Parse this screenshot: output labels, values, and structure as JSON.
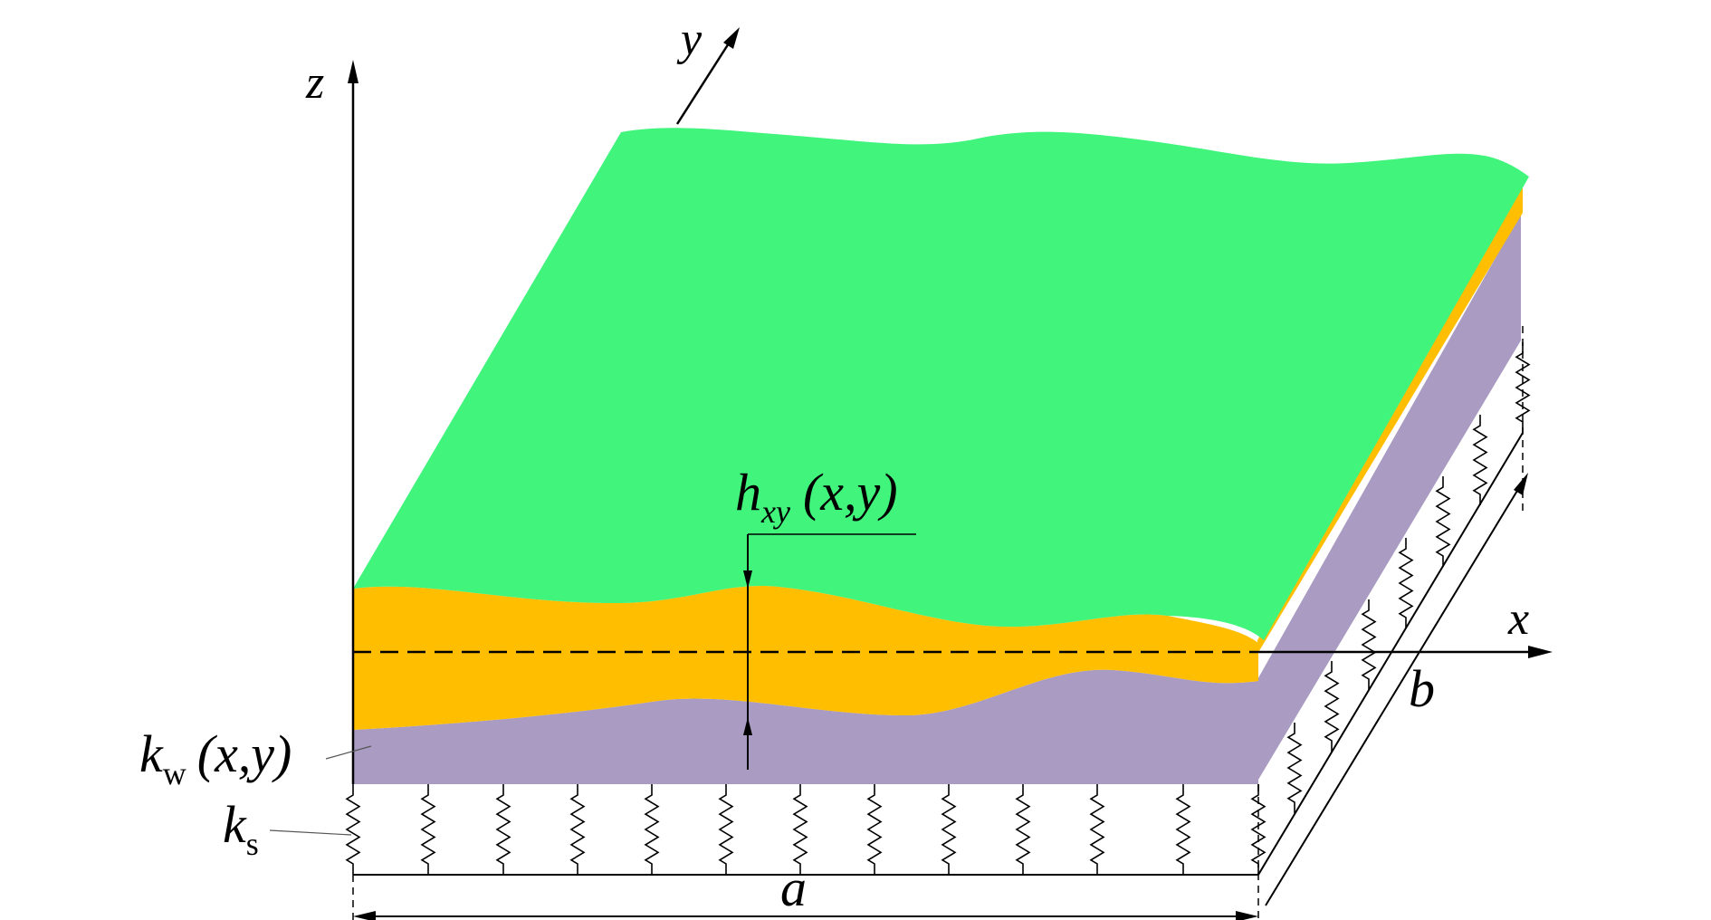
{
  "labels": {
    "z_axis": "z",
    "y_axis": "y",
    "x_axis": "x",
    "thickness_main": "h",
    "thickness_sub": "xy",
    "thickness_args": "(x,y)",
    "winkler_main": "k",
    "winkler_sub": "w",
    "winkler_args": "(x,y)",
    "shear_main": "k",
    "shear_sub": "s",
    "width_a": "a",
    "length_b": "b"
  },
  "colors": {
    "top_layer": "#40F47C",
    "middle_layer": "#FFBE00",
    "bottom_layer": "#A99BC1",
    "lines": "#000000"
  }
}
